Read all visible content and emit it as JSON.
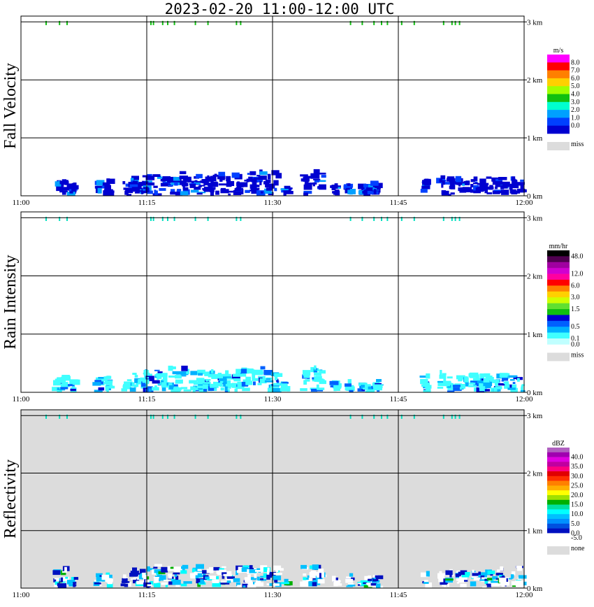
{
  "title": "2023-02-20  11:00-12:00 UTC",
  "chart_data": [
    {
      "type": "heatmap",
      "panel_label": "Fall Velocity",
      "x_ticks": [
        "11:00",
        "11:15",
        "11:30",
        "11:45",
        "12:00"
      ],
      "xlim_minutes": [
        0,
        60
      ],
      "y_ticks": [
        "0 km",
        "1 km",
        "2 km",
        "3 km"
      ],
      "ylim_km": [
        0,
        3.1
      ],
      "grid": true,
      "background": "#ffffff",
      "legend": {
        "unit": "m/s",
        "placement": "right",
        "bins": [
          {
            "label": "8.0",
            "color": "#ff00ff"
          },
          {
            "label": "7.0",
            "color": "#ff0000"
          },
          {
            "label": "6.0",
            "color": "#ff8000"
          },
          {
            "label": "5.0",
            "color": "#ffd000"
          },
          {
            "label": "4.0",
            "color": "#a0ff00"
          },
          {
            "label": "3.0",
            "color": "#10c010"
          },
          {
            "label": "2.0",
            "color": "#00ffd0"
          },
          {
            "label": "1.0",
            "color": "#00a0ff"
          },
          {
            "label": "0.0",
            "color": "#0040ff"
          },
          {
            "label": "",
            "color": "#0000d0"
          }
        ],
        "missing": {
          "label": "miss",
          "color": "#dcdcdc"
        }
      },
      "echo_columns_minutes": [
        4.5,
        5.2,
        6.3,
        9.3,
        10.4,
        12.6,
        13.6,
        14.4,
        15.2,
        16.3,
        17.1,
        18.0,
        18.7,
        19.6,
        20.7,
        21.4,
        22.3,
        23.1,
        24.0,
        24.8,
        25.9,
        26.9,
        27.7,
        28.6,
        29.6,
        30.5,
        31.7,
        34.0,
        35.1,
        35.8,
        37.6,
        39.2,
        40.9,
        41.5,
        42.4,
        48.3,
        50.3,
        51.2,
        52.2,
        53.0,
        54.1,
        55.0,
        55.8,
        56.8,
        57.6,
        58.6,
        59.6
      ],
      "echo_top_km": [
        0.25,
        0.3,
        0.15,
        0.2,
        0.25,
        0.2,
        0.3,
        0.28,
        0.35,
        0.38,
        0.3,
        0.4,
        0.32,
        0.38,
        0.3,
        0.34,
        0.28,
        0.37,
        0.35,
        0.3,
        0.32,
        0.38,
        0.36,
        0.4,
        0.33,
        0.38,
        0.15,
        0.35,
        0.4,
        0.38,
        0.15,
        0.2,
        0.12,
        0.15,
        0.18,
        0.25,
        0.3,
        0.28,
        0.26,
        0.24,
        0.28,
        0.25,
        0.3,
        0.28,
        0.3,
        0.28,
        0.35
      ],
      "cloud_layer_km": 2.98,
      "cloud_layer_columns_minutes": [
        3.0,
        4.6,
        5.5,
        15.5,
        15.8,
        16.9,
        17.5,
        18.3,
        20.8,
        22.3,
        25.7,
        26.2,
        39.3,
        40.7,
        42.1,
        43.0,
        43.7,
        45.4,
        46.9,
        50.4,
        51.4,
        51.8,
        52.3
      ]
    },
    {
      "type": "heatmap",
      "panel_label": "Rain Intensity",
      "x_ticks": [
        "11:00",
        "11:15",
        "11:30",
        "11:45",
        "12:00"
      ],
      "xlim_minutes": [
        0,
        60
      ],
      "y_ticks": [
        "0 km",
        "1 km",
        "2 km",
        "3 km"
      ],
      "ylim_km": [
        0,
        3.1
      ],
      "grid": true,
      "background": "#ffffff",
      "legend": {
        "unit": "mm/hr",
        "placement": "right",
        "bins": [
          {
            "label": "48.0",
            "color": "#000000"
          },
          {
            "label": "",
            "color": "#500050"
          },
          {
            "label": "",
            "color": "#a000a0"
          },
          {
            "label": "12.0",
            "color": "#d000d0"
          },
          {
            "label": "",
            "color": "#ff00a0"
          },
          {
            "label": "6.0",
            "color": "#ff0000"
          },
          {
            "label": "",
            "color": "#ff8000"
          },
          {
            "label": "3.0",
            "color": "#ffd000"
          },
          {
            "label": "",
            "color": "#d0ff00"
          },
          {
            "label": "1.5",
            "color": "#60e030"
          },
          {
            "label": "",
            "color": "#10c010"
          },
          {
            "label": "",
            "color": "#0000d0"
          },
          {
            "label": "0.5",
            "color": "#0060ff"
          },
          {
            "label": "",
            "color": "#00b0ff"
          },
          {
            "label": "0.1",
            "color": "#40ffff"
          },
          {
            "label": "0.0",
            "color": "#c0ffff"
          }
        ],
        "missing": {
          "label": "miss",
          "color": "#dcdcdc"
        }
      },
      "echo_columns_minutes": [
        4.5,
        5.2,
        6.3,
        9.3,
        10.4,
        12.6,
        13.6,
        14.4,
        15.2,
        16.3,
        17.1,
        18.0,
        18.7,
        19.6,
        20.7,
        21.4,
        22.3,
        23.1,
        24.0,
        24.8,
        25.9,
        26.9,
        27.7,
        28.6,
        29.6,
        30.5,
        31.7,
        34.0,
        35.1,
        35.8,
        37.6,
        39.2,
        40.9,
        41.5,
        42.4,
        48.3,
        50.3,
        51.2,
        52.2,
        53.0,
        54.1,
        55.0,
        55.8,
        56.8,
        57.6,
        58.6,
        59.6
      ],
      "echo_top_km": [
        0.25,
        0.3,
        0.15,
        0.2,
        0.25,
        0.2,
        0.3,
        0.28,
        0.35,
        0.38,
        0.3,
        0.4,
        0.32,
        0.38,
        0.3,
        0.34,
        0.28,
        0.37,
        0.35,
        0.3,
        0.32,
        0.38,
        0.36,
        0.4,
        0.33,
        0.38,
        0.15,
        0.35,
        0.4,
        0.38,
        0.15,
        0.2,
        0.12,
        0.15,
        0.18,
        0.25,
        0.3,
        0.28,
        0.26,
        0.24,
        0.28,
        0.25,
        0.3,
        0.28,
        0.3,
        0.28,
        0.35
      ],
      "cloud_layer_km": 2.98,
      "cloud_layer_columns_minutes": [
        3.0,
        4.6,
        5.5,
        15.5,
        15.8,
        16.9,
        17.5,
        18.3,
        20.8,
        22.3,
        25.7,
        26.2,
        39.3,
        40.7,
        42.1,
        43.0,
        43.7,
        45.4,
        46.9,
        50.4,
        51.4,
        51.8,
        52.3
      ]
    },
    {
      "type": "heatmap",
      "panel_label": "Reflectivity",
      "x_ticks": [
        "11:00",
        "11:15",
        "11:30",
        "11:45",
        "12:00"
      ],
      "xlim_minutes": [
        0,
        60
      ],
      "y_ticks": [
        "0 km",
        "1 km",
        "2 km",
        "3 km"
      ],
      "ylim_km": [
        0,
        3.1
      ],
      "grid": true,
      "background": "#dcdcdc",
      "legend": {
        "unit": "dBZ",
        "placement": "right",
        "bins": [
          {
            "label": "",
            "color": "#b060c0"
          },
          {
            "label": "40.0",
            "color": "#a000b0"
          },
          {
            "label": "",
            "color": "#e000e0"
          },
          {
            "label": "35.0",
            "color": "#c000a0"
          },
          {
            "label": "",
            "color": "#ff0080"
          },
          {
            "label": "30.0",
            "color": "#e00000"
          },
          {
            "label": "",
            "color": "#ff3000"
          },
          {
            "label": "25.0",
            "color": "#ff8000"
          },
          {
            "label": "",
            "color": "#ffb000"
          },
          {
            "label": "20.0",
            "color": "#ffff00"
          },
          {
            "label": "",
            "color": "#a0e000"
          },
          {
            "label": "15.0",
            "color": "#00b000"
          },
          {
            "label": "",
            "color": "#00e0a0"
          },
          {
            "label": "10.0",
            "color": "#00ffff"
          },
          {
            "label": "",
            "color": "#00c0ff"
          },
          {
            "label": "5.0",
            "color": "#0090ff"
          },
          {
            "label": "",
            "color": "#0050e0"
          },
          {
            "label": "0.0",
            "color": "#0010c0"
          },
          {
            "label": "-5.0",
            "color": "#ffffff"
          }
        ],
        "missing": {
          "label": "none",
          "color": "#dcdcdc"
        }
      },
      "echo_columns_minutes": [
        4.5,
        5.2,
        6.3,
        9.3,
        10.4,
        12.6,
        13.6,
        14.4,
        15.2,
        16.3,
        17.1,
        18.0,
        18.7,
        19.6,
        20.7,
        21.4,
        22.3,
        23.1,
        24.0,
        24.8,
        25.9,
        26.9,
        27.7,
        28.6,
        29.6,
        30.5,
        31.7,
        34.0,
        35.1,
        35.8,
        37.6,
        39.2,
        40.9,
        41.5,
        42.4,
        48.3,
        50.3,
        51.2,
        52.2,
        53.0,
        54.1,
        55.0,
        55.8,
        56.8,
        57.6,
        58.6,
        59.6
      ],
      "echo_top_km": [
        0.25,
        0.3,
        0.15,
        0.2,
        0.25,
        0.2,
        0.3,
        0.28,
        0.35,
        0.38,
        0.3,
        0.4,
        0.32,
        0.38,
        0.3,
        0.34,
        0.28,
        0.37,
        0.35,
        0.3,
        0.32,
        0.38,
        0.36,
        0.4,
        0.33,
        0.38,
        0.15,
        0.35,
        0.4,
        0.38,
        0.15,
        0.2,
        0.12,
        0.15,
        0.18,
        0.25,
        0.3,
        0.28,
        0.26,
        0.24,
        0.28,
        0.25,
        0.3,
        0.28,
        0.3,
        0.28,
        0.35
      ],
      "cloud_layer_km": 2.98,
      "cloud_layer_columns_minutes": [
        3.0,
        4.6,
        5.5,
        15.5,
        15.8,
        16.9,
        17.5,
        18.3,
        20.8,
        22.3,
        25.7,
        26.2,
        39.3,
        40.7,
        42.1,
        43.0,
        43.7,
        45.4,
        46.9,
        50.4,
        51.4,
        51.8,
        52.3
      ]
    }
  ]
}
